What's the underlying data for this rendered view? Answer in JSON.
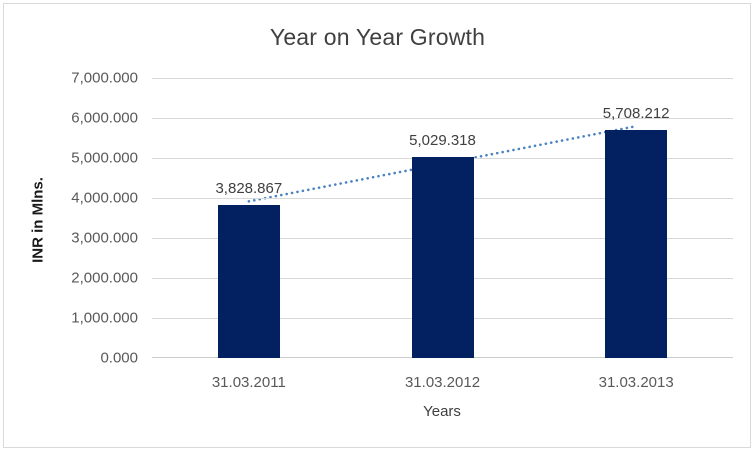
{
  "chart_data": {
    "type": "bar",
    "title": "Year on Year Growth",
    "xlabel": "Years",
    "ylabel": "INR in Mlns.",
    "categories": [
      "31.03.2011",
      "31.03.2012",
      "31.03.2013"
    ],
    "values": [
      3828.867,
      5029.318,
      5708.212
    ],
    "value_labels": [
      "3,828.867",
      "5,029.318",
      "5,708.212"
    ],
    "ylim": [
      0,
      7000
    ],
    "y_ticks": [
      {
        "value": 0,
        "label": "0.000"
      },
      {
        "value": 1000,
        "label": "1,000.000"
      },
      {
        "value": 2000,
        "label": "2,000.000"
      },
      {
        "value": 3000,
        "label": "3,000.000"
      },
      {
        "value": 4000,
        "label": "4,000.000"
      },
      {
        "value": 5000,
        "label": "5,000.000"
      },
      {
        "value": 6000,
        "label": "6,000.000"
      },
      {
        "value": 7000,
        "label": "7,000.000"
      }
    ],
    "grid": true,
    "legend": false,
    "trendline": {
      "type": "linear",
      "style": "dotted"
    },
    "colors": {
      "bar": "#032060",
      "trendline": "#4a82c4",
      "gridline": "#d9d9d9",
      "axis_line": "#cccccc",
      "border": "#d9d9d9",
      "background": "#ffffff",
      "title_text": "#404040",
      "tick_text": "#595959",
      "value_label_text": "#404040"
    }
  }
}
